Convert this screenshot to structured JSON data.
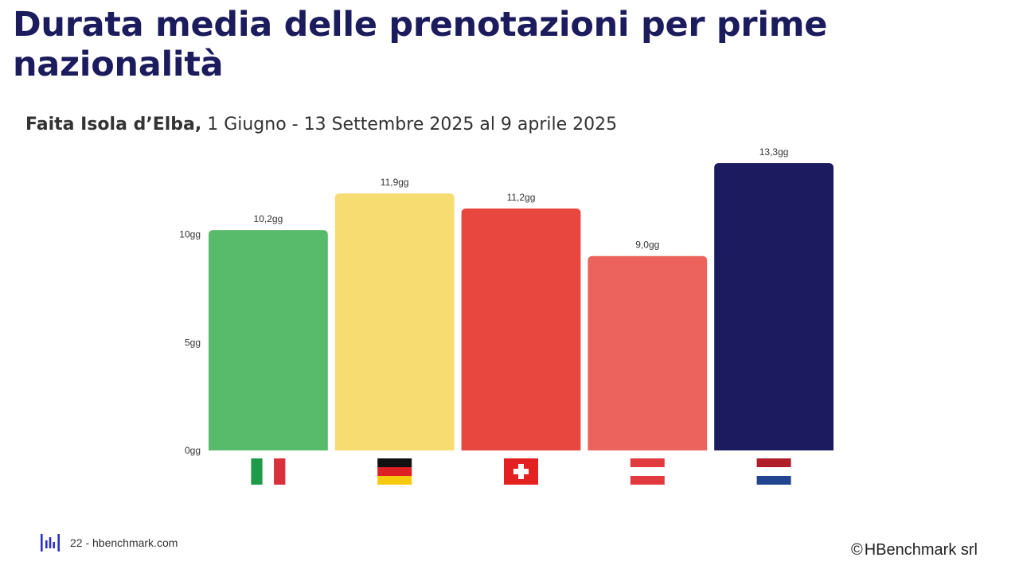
{
  "header": {
    "title": "Durata media delle prenotazioni per prime nazionalità",
    "subtitle_strong": "Faita Isola d’Elba,",
    "subtitle_rest": " 1 Giugno - 13 Settembre 2025 al 9 aprile 2025"
  },
  "chart_data": {
    "type": "bar",
    "categories": [
      "Italia",
      "Germania",
      "Svizzera",
      "Austria",
      "Paesi Bassi"
    ],
    "values": [
      10.2,
      11.9,
      11.2,
      9.0,
      13.3
    ],
    "value_labels": [
      "10,2gg",
      "11,9gg",
      "11,2gg",
      "9,0gg",
      "13,3gg"
    ],
    "bar_colors": [
      "#57bb6b",
      "#f7dc72",
      "#e8473f",
      "#eb635c",
      "#1c1b60"
    ],
    "flag_icons": [
      "flag-italy-icon",
      "flag-germany-icon",
      "flag-switzerland-icon",
      "flag-austria-icon",
      "flag-netherlands-icon"
    ],
    "y_ticks": [
      0,
      5,
      10
    ],
    "y_tick_labels": [
      "0gg",
      "5gg",
      "10gg"
    ],
    "ylim": [
      0,
      13.3
    ],
    "grid": false,
    "legend": "none"
  },
  "footer": {
    "page_label": "22 - hbenchmark.com",
    "logo_icon": "hbenchmark-logo-icon",
    "copyright_symbol": "©",
    "copyright_text": "HBenchmark srl"
  }
}
